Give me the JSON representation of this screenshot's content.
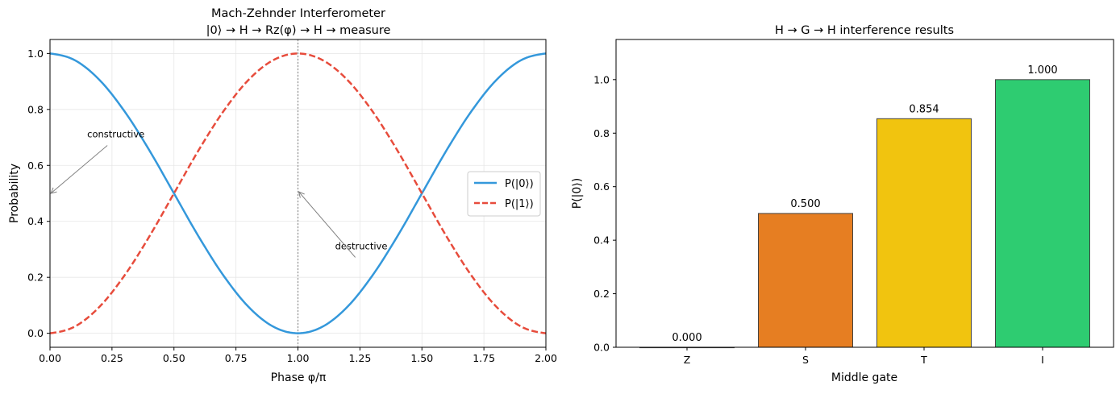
{
  "chart_data": [
    {
      "type": "line",
      "title": "Mach-Zehnder Interferometer",
      "subtitle": "|0⟩ → H → Rz(φ) → H →  measure",
      "xlabel": "Phase φ/π",
      "ylabel": "Probability",
      "xlim": [
        0,
        2
      ],
      "ylim": [
        -0.05,
        1.05
      ],
      "xticks": [
        "0.00",
        "0.25",
        "0.50",
        "0.75",
        "1.00",
        "1.25",
        "1.50",
        "1.75",
        "2.00"
      ],
      "yticks": [
        "0.0",
        "0.2",
        "0.4",
        "0.6",
        "0.8",
        "1.0"
      ],
      "grid": true,
      "legend_position": "right",
      "x": [
        0,
        0.1,
        0.2,
        0.3,
        0.4,
        0.5,
        0.6,
        0.7,
        0.8,
        0.9,
        1.0,
        1.1,
        1.2,
        1.3,
        1.4,
        1.5,
        1.6,
        1.7,
        1.8,
        1.9,
        2.0
      ],
      "series": [
        {
          "name": "P(|0⟩)",
          "style": "solid",
          "color": "#3498db",
          "values": [
            1.0,
            0.976,
            0.905,
            0.794,
            0.655,
            0.5,
            0.345,
            0.206,
            0.095,
            0.024,
            0.0,
            0.024,
            0.095,
            0.206,
            0.345,
            0.5,
            0.655,
            0.794,
            0.905,
            0.976,
            1.0
          ]
        },
        {
          "name": "P(|1⟩)",
          "style": "dashed",
          "color": "#e74c3c",
          "values": [
            0.0,
            0.024,
            0.095,
            0.206,
            0.345,
            0.5,
            0.655,
            0.794,
            0.905,
            0.976,
            1.0,
            0.976,
            0.905,
            0.794,
            0.655,
            0.5,
            0.345,
            0.206,
            0.095,
            0.024,
            0.0
          ]
        }
      ],
      "vline": {
        "x": 1.0,
        "color": "#999999",
        "style": "dotted"
      },
      "annotations": [
        {
          "text": "constructive",
          "text_at": [
            0.15,
            0.7
          ],
          "arrow_to": [
            0.0,
            0.5
          ]
        },
        {
          "text": "destructive",
          "text_at": [
            1.15,
            0.3
          ],
          "arrow_to": [
            1.0,
            0.5
          ]
        }
      ]
    },
    {
      "type": "bar",
      "title": "H → G → H interference results",
      "xlabel": "Middle gate",
      "ylabel": "P(|0⟩)",
      "ylim": [
        0,
        1.15
      ],
      "yticks": [
        "0.0",
        "0.2",
        "0.4",
        "0.6",
        "0.8",
        "1.0"
      ],
      "grid": false,
      "categories": [
        "Z",
        "S",
        "T",
        "I"
      ],
      "values": [
        0.0,
        0.5,
        0.854,
        1.0
      ],
      "value_labels": [
        "0.000",
        "0.500",
        "0.854",
        "1.000"
      ],
      "colors": [
        "#3498db",
        "#e67e22",
        "#f1c40f",
        "#2ecc71"
      ]
    }
  ]
}
